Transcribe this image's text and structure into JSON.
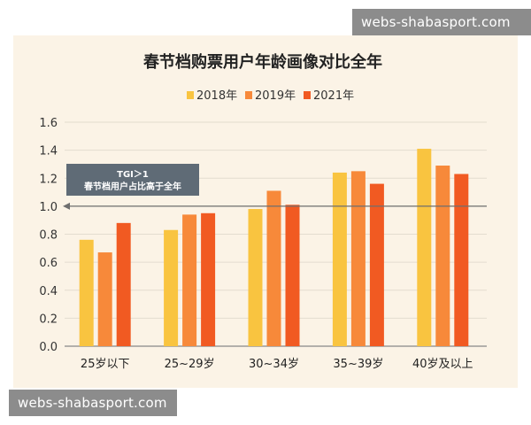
{
  "watermarks": {
    "top": "webs-shabasport.com",
    "bottom": "webs-shabasport.com"
  },
  "colors": {
    "background": "#fbf3e6",
    "axis": "#888888",
    "grid": "#e3dccf",
    "callout": "#5f6b76"
  },
  "chart_data": {
    "type": "bar",
    "title": "春节档购票用户年龄画像对比全年",
    "categories": [
      "25岁以下",
      "25~29岁",
      "30~34岁",
      "35~39岁",
      "40岁及以上"
    ],
    "series": [
      {
        "name": "2018年",
        "color": "#f9c440",
        "values": [
          0.76,
          0.83,
          0.98,
          1.24,
          1.41
        ]
      },
      {
        "name": "2019年",
        "color": "#f7893a",
        "values": [
          0.67,
          0.94,
          1.11,
          1.25,
          1.29
        ]
      },
      {
        "name": "2021年",
        "color": "#f15a22",
        "values": [
          0.88,
          0.95,
          1.01,
          1.16,
          1.23
        ]
      }
    ],
    "ylim": [
      0,
      1.6
    ],
    "yticks": [
      "0.0",
      "0.2",
      "0.4",
      "0.6",
      "0.8",
      "1.0",
      "1.2",
      "1.4",
      "1.6"
    ],
    "grid": true,
    "legend": "top-center",
    "reference_line": {
      "value": 1.0
    },
    "annotation": {
      "line1": "TGI＞1",
      "line2": "春节档用户占比高于全年"
    }
  }
}
